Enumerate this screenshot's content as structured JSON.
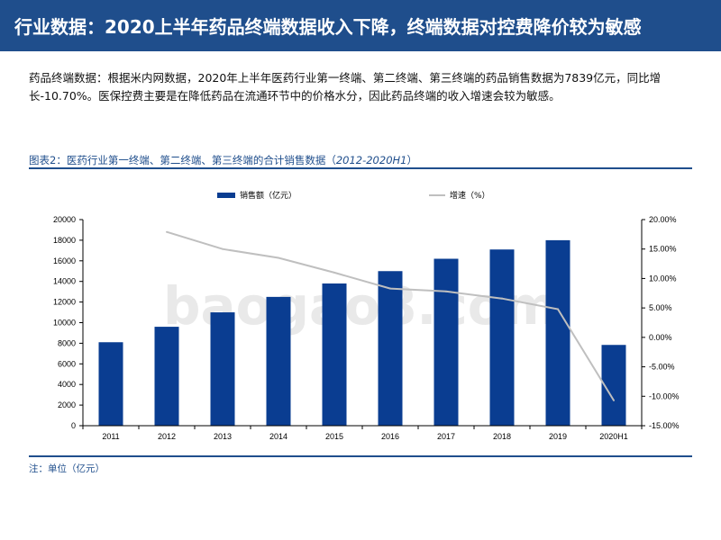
{
  "header": {
    "title": "行业数据：2020上半年药品终端数据收入下降，终端数据对控费降价较为敏感",
    "bg_color": "#1f4e8c"
  },
  "description": "药品终端数据：根据米内网数据，2020年上半年医药行业第一终端、第二终端、第三终端的药品销售数据为7839亿元，同比增长-10.70%。医保控费主要是在降低药品在流通环节中的价格水分，因此药品终端的收入增速会较为敏感。",
  "figure": {
    "title_prefix": "图表2：医药行业第一终端、第二终端、第三终端的合计销售数据（",
    "title_period": "2012-2020H1",
    "title_suffix": "）",
    "note": "注：单位（亿元）"
  },
  "chart_data": {
    "type": "bar",
    "categories": [
      "2011",
      "2012",
      "2013",
      "2014",
      "2015",
      "2016",
      "2017",
      "2018",
      "2019",
      "2020H1"
    ],
    "series": [
      {
        "name": "销售额（亿元）",
        "type": "bar",
        "axis": "left",
        "color": "#0a3d91",
        "values": [
          8100,
          9600,
          11000,
          12500,
          13800,
          15000,
          16200,
          17100,
          18000,
          7839
        ]
      },
      {
        "name": "增速（%）",
        "type": "line",
        "axis": "right",
        "color": "#bfbfbf",
        "values": [
          null,
          17.9,
          15.0,
          13.5,
          11.0,
          8.3,
          7.8,
          6.6,
          4.8,
          -10.7
        ]
      }
    ],
    "y_left": {
      "min": 0,
      "max": 20000,
      "ticks": [
        "0",
        "2000",
        "4000",
        "6000",
        "8000",
        "10000",
        "12000",
        "14000",
        "16000",
        "18000",
        "20000"
      ]
    },
    "y_right": {
      "min": -15,
      "max": 20,
      "ticks": [
        "-15.00%",
        "-10.00%",
        "-5.00%",
        "0.00%",
        "5.00%",
        "10.00%",
        "15.00%",
        "20.00%"
      ]
    },
    "legend_position": "top",
    "grid": false,
    "watermark": "baogao8.com"
  }
}
